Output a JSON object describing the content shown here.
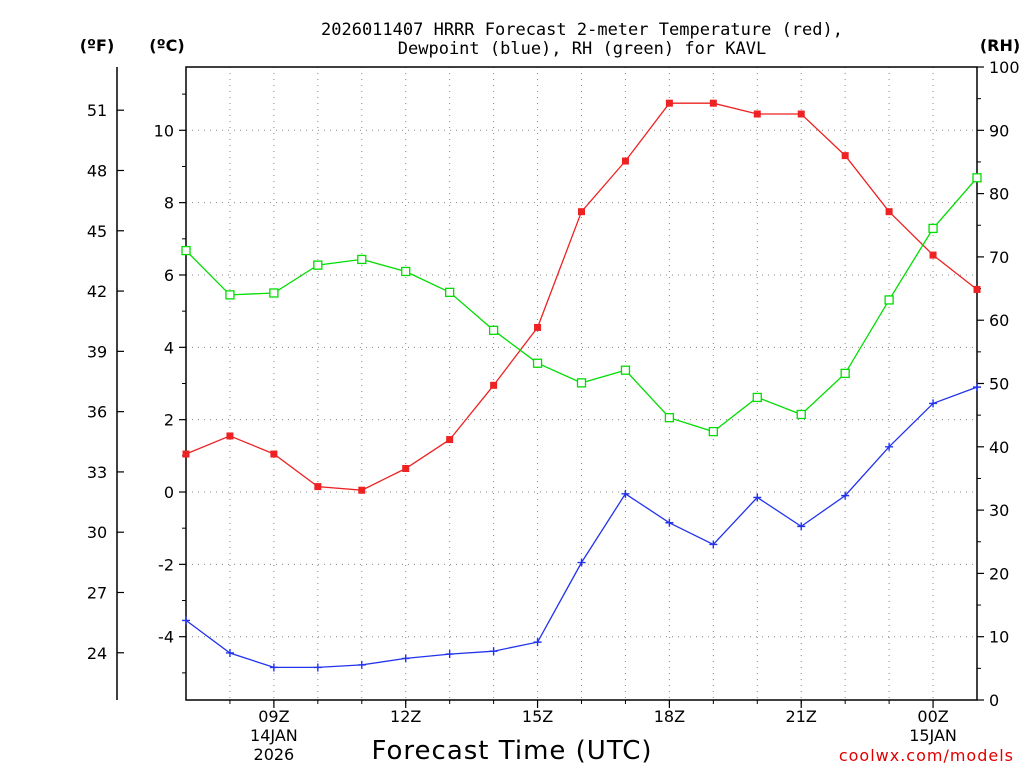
{
  "chart_data": {
    "type": "line",
    "title_line1": "2026011407 HRRR Forecast 2-meter Temperature (red),",
    "title_line2": "Dewpoint (blue), RH (green) for KAVL",
    "xlabel": "Forecast Time (UTC)",
    "credit": "coolwx.com/models",
    "units": {
      "f": "(ºF)",
      "c": "(ºC)",
      "rh": "(RH)"
    },
    "x": [
      7,
      8,
      9,
      10,
      11,
      12,
      13,
      14,
      15,
      16,
      17,
      18,
      19,
      20,
      21,
      22,
      23,
      24,
      25
    ],
    "x_ticks": [
      {
        "hour": 9,
        "label": "09Z",
        "sub1": "14JAN",
        "sub2": "2026"
      },
      {
        "hour": 12,
        "label": "12Z",
        "sub1": "",
        "sub2": ""
      },
      {
        "hour": 15,
        "label": "15Z",
        "sub1": "",
        "sub2": ""
      },
      {
        "hour": 18,
        "label": "18Z",
        "sub1": "",
        "sub2": ""
      },
      {
        "hour": 21,
        "label": "21Z",
        "sub1": "",
        "sub2": ""
      },
      {
        "hour": 24,
        "label": "00Z",
        "sub1": "15JAN",
        "sub2": ""
      }
    ],
    "xlim": [
      7,
      25
    ],
    "ylim_c": [
      -5.75,
      11.75
    ],
    "ylim_rh": [
      0,
      100
    ],
    "y_ticks_c": [
      "-4",
      "-2",
      "0",
      "2",
      "4",
      "6",
      "8",
      "10"
    ],
    "y_ticks_f": [
      "24",
      "27",
      "30",
      "33",
      "36",
      "39",
      "42",
      "45",
      "48",
      "51"
    ],
    "y_ticks_rh": [
      "0",
      "10",
      "20",
      "30",
      "40",
      "50",
      "60",
      "70",
      "80",
      "90",
      "100"
    ],
    "series": [
      {
        "name": "Temperature",
        "axis": "c",
        "color": "#ee2222",
        "marker": "filled-square",
        "values": [
          1.05,
          1.55,
          1.05,
          0.15,
          0.05,
          0.65,
          1.45,
          2.95,
          4.55,
          7.75,
          9.15,
          10.75,
          10.75,
          10.45,
          10.45,
          9.3,
          7.75,
          6.55,
          5.6
        ]
      },
      {
        "name": "Dewpoint",
        "axis": "c",
        "color": "#2233ee",
        "marker": "plus",
        "values": [
          -3.55,
          -4.45,
          -4.85,
          -4.85,
          -4.78,
          -4.6,
          -4.48,
          -4.4,
          -4.15,
          -1.95,
          -0.05,
          -0.85,
          -1.45,
          -0.15,
          -0.95,
          -0.1,
          1.25,
          2.45,
          2.9
        ]
      },
      {
        "name": "RH",
        "axis": "rh",
        "color": "#00dd00",
        "marker": "open-square",
        "values": [
          71.0,
          64.0,
          64.3,
          68.7,
          69.6,
          67.7,
          64.4,
          58.4,
          53.2,
          50.1,
          52.1,
          44.6,
          42.4,
          47.8,
          45.1,
          51.6,
          63.2,
          74.5,
          82.5
        ]
      }
    ]
  }
}
